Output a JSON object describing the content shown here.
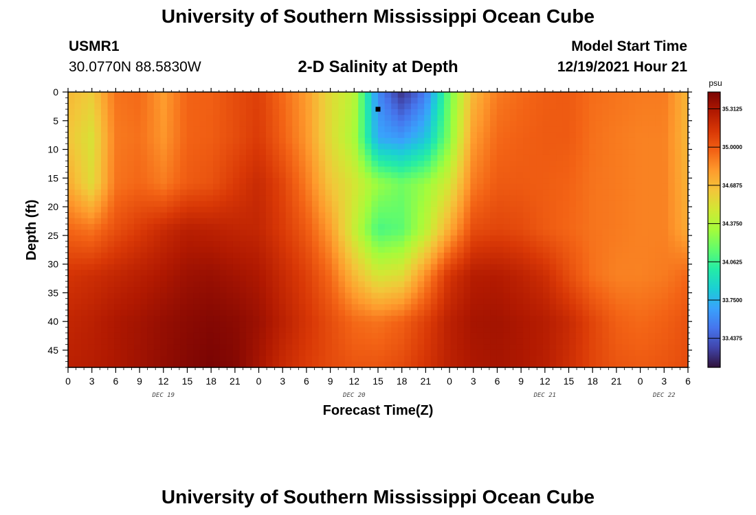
{
  "header": {
    "title": "University of Southern Mississippi Ocean Cube",
    "station_id": "USMR1",
    "station_location": "30.0770N  88.5830W",
    "subtitle": "2-D Salinity at Depth",
    "model_start_label": "Model Start Time",
    "model_start_value": "12/19/2021 Hour 21"
  },
  "footer": {
    "title": "University of Southern Mississippi Ocean Cube"
  },
  "colors": {
    "colormap": [
      "#30123b",
      "#4145ab",
      "#4675ed",
      "#39a2fc",
      "#1bcfd4",
      "#24eca6",
      "#61fc6c",
      "#a4fc3b",
      "#d1e834",
      "#f3c63a",
      "#fe9b2d",
      "#f36315",
      "#d93806",
      "#b11901",
      "#7a0403"
    ]
  },
  "chart_data": {
    "type": "heatmap",
    "xlabel": "Forecast Time(Z)",
    "ylabel": "Depth (ft)",
    "x_tick_labels": [
      "0",
      "3",
      "6",
      "9",
      "12",
      "15",
      "18",
      "21",
      "0",
      "3",
      "6",
      "9",
      "12",
      "15",
      "18",
      "21",
      "0",
      "3",
      "6",
      "9",
      "12",
      "15",
      "18",
      "21",
      "0",
      "3",
      "6"
    ],
    "date_labels": [
      {
        "text": "DEC 19",
        "tick_index": 4
      },
      {
        "text": "DEC 20",
        "tick_index": 12
      },
      {
        "text": "DEC 21",
        "tick_index": 20
      },
      {
        "text": "DEC 22",
        "tick_index": 25
      }
    ],
    "xlim_hours": [
      0,
      78
    ],
    "y_ticks": [
      0,
      5,
      10,
      15,
      20,
      25,
      30,
      35,
      40,
      45
    ],
    "ylim_ft": [
      0,
      48
    ],
    "y_inverted": true,
    "colorbar": {
      "unit": "psu",
      "tick_labels": [
        "35.3125",
        "35.0000",
        "34.6875",
        "34.3750",
        "34.0625",
        "33.7500",
        "33.4375"
      ],
      "range": [
        33.2,
        35.45
      ]
    },
    "marker": {
      "hour": 39,
      "depth_ft": 3
    },
    "grid_hours": [
      0,
      3,
      6,
      9,
      12,
      15,
      18,
      21,
      24,
      27,
      30,
      33,
      36,
      39,
      42,
      45,
      48,
      51,
      54,
      57,
      60,
      63,
      66,
      69,
      72,
      75,
      78
    ],
    "grid_depths_ft": [
      0,
      8,
      16,
      24,
      32,
      40,
      48
    ],
    "salinity_grid": [
      [
        34.7,
        34.62,
        34.92,
        34.95,
        34.8,
        34.97,
        34.98,
        35.05,
        35.1,
        34.95,
        34.8,
        34.55,
        34.4,
        33.6,
        33.3,
        33.55,
        34.2,
        34.7,
        34.9,
        34.95,
        34.99,
        35.0,
        34.94,
        34.92,
        34.9,
        34.9,
        34.7
      ],
      [
        34.65,
        34.52,
        34.9,
        34.93,
        34.82,
        34.97,
        34.99,
        35.05,
        35.12,
        34.98,
        34.82,
        34.55,
        34.35,
        33.7,
        33.65,
        33.8,
        34.25,
        34.8,
        34.95,
        34.98,
        35.0,
        35.0,
        34.93,
        34.9,
        34.88,
        34.88,
        34.7
      ],
      [
        34.75,
        34.55,
        34.92,
        34.96,
        34.9,
        35.0,
        35.03,
        35.12,
        35.2,
        35.08,
        34.9,
        34.65,
        34.5,
        34.3,
        34.2,
        34.3,
        34.5,
        34.9,
        35.0,
        35.0,
        34.99,
        34.97,
        34.92,
        34.9,
        34.88,
        34.88,
        34.72
      ],
      [
        34.96,
        34.92,
        35.04,
        35.12,
        35.2,
        35.26,
        35.25,
        35.23,
        35.22,
        35.12,
        35.0,
        34.8,
        34.45,
        34.1,
        34.15,
        34.4,
        34.75,
        35.05,
        35.08,
        35.06,
        35.0,
        34.96,
        34.92,
        34.9,
        34.88,
        34.88,
        34.75
      ],
      [
        35.15,
        35.18,
        35.22,
        35.26,
        35.3,
        35.35,
        35.36,
        35.33,
        35.3,
        35.2,
        35.1,
        34.95,
        34.7,
        34.5,
        34.55,
        34.85,
        35.15,
        35.27,
        35.28,
        35.24,
        35.18,
        35.05,
        34.93,
        34.88,
        34.88,
        34.9,
        34.96
      ],
      [
        35.22,
        35.25,
        35.3,
        35.33,
        35.37,
        35.4,
        35.42,
        35.4,
        35.35,
        35.25,
        35.15,
        35.05,
        34.95,
        34.92,
        34.98,
        35.1,
        35.25,
        35.32,
        35.33,
        35.3,
        35.27,
        35.2,
        35.08,
        34.98,
        34.95,
        34.98,
        35.03
      ],
      [
        35.25,
        35.27,
        35.3,
        35.34,
        35.38,
        35.42,
        35.45,
        35.42,
        35.32,
        35.2,
        35.12,
        35.06,
        35.02,
        35.02,
        35.06,
        35.15,
        35.25,
        35.3,
        35.32,
        35.3,
        35.26,
        35.18,
        35.08,
        35.02,
        35.0,
        35.02,
        35.06
      ]
    ]
  }
}
